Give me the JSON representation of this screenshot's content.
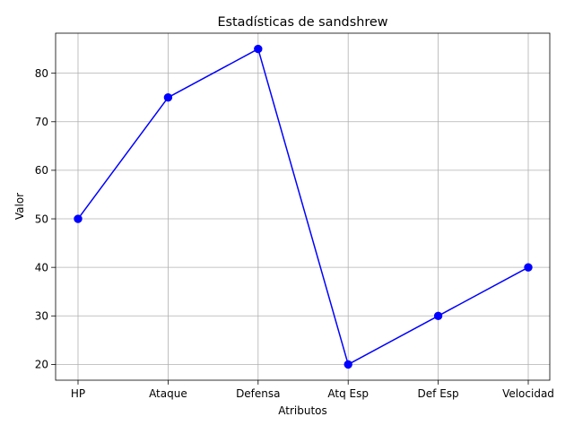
{
  "chart_data": {
    "type": "line",
    "title": "Estadísticas de sandshrew",
    "xlabel": "Atributos",
    "ylabel": "Valor",
    "categories": [
      "HP",
      "Ataque",
      "Defensa",
      "Atq Esp",
      "Def Esp",
      "Velocidad"
    ],
    "series": [
      {
        "values": [
          50,
          75,
          85,
          20,
          30,
          40
        ],
        "color": "#0000ff",
        "marker": "circle"
      }
    ],
    "ylim": [
      16.75,
      88.25
    ],
    "yticks": [
      20,
      30,
      40,
      50,
      60,
      70,
      80
    ],
    "grid": true
  }
}
